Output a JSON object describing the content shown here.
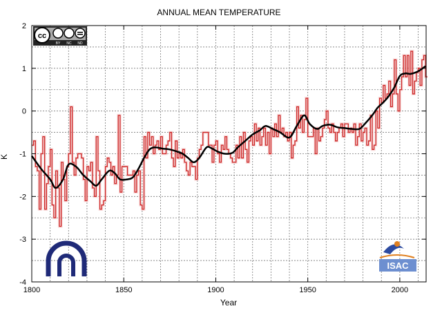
{
  "chart_data": {
    "type": "line",
    "title": "ANNUAL MEAN TEMPERATURE",
    "xlabel": "Year",
    "ylabel": "K",
    "xlim": [
      1800,
      2014
    ],
    "ylim": [
      -4,
      2
    ],
    "xticks": [
      1800,
      1850,
      1900,
      1950,
      2000
    ],
    "yticks": [
      2,
      1,
      0,
      -1,
      -2,
      -3,
      -4
    ],
    "grid": true,
    "grid_style": "dotted",
    "grid_step": {
      "x": 10,
      "y": 0.5
    },
    "colors": {
      "annual": "#cc1f1f",
      "smooth": "#000000",
      "annual_fill": "#f3c9c9"
    },
    "annual": {
      "start_year": 1800,
      "style": "step",
      "values": [
        -0.8,
        -0.7,
        -1.3,
        -1.4,
        -2.3,
        -1.0,
        -0.6,
        -2.3,
        -1.7,
        -1.3,
        -0.9,
        -2.2,
        -2.5,
        -1.4,
        -1.8,
        -2.7,
        -1.2,
        -1.6,
        -2.1,
        -1.3,
        -1.0,
        0.1,
        -1.2,
        -1.5,
        -1.1,
        -1.0,
        -1.0,
        -1.1,
        -1.6,
        -2.1,
        -1.3,
        -1.4,
        -1.2,
        -1.8,
        -2.0,
        -0.6,
        -1.4,
        -2.3,
        -2.2,
        -2.1,
        -1.3,
        -1.1,
        -1.2,
        -1.5,
        -1.3,
        -1.7,
        -1.5,
        -0.1,
        -1.9,
        -1.3,
        -1.3,
        -1.3,
        -1.5,
        -1.5,
        -1.5,
        -1.4,
        -1.9,
        -1.5,
        -1.4,
        -2.2,
        -2.3,
        -0.6,
        -1.1,
        -0.5,
        -0.8,
        -0.6,
        -1.0,
        -0.8,
        -0.7,
        -0.9,
        -0.6,
        -1.0,
        -1.0,
        -0.8,
        -0.7,
        -0.5,
        -1.1,
        -1.3,
        -0.7,
        -1.1,
        -1.0,
        -1.1,
        -0.9,
        -1.2,
        -1.4,
        -1.5,
        -1.2,
        -1.3,
        -1.3,
        -1.6,
        -1.1,
        -0.9,
        -0.8,
        -0.5,
        -0.5,
        -0.5,
        -0.8,
        -0.8,
        -1.2,
        -0.8,
        -0.7,
        -1.0,
        -1.2,
        -0.8,
        -0.9,
        -0.6,
        -0.9,
        -1.0,
        -1.1,
        -1.2,
        -1.2,
        -0.8,
        -1.1,
        -0.6,
        -1.1,
        -0.5,
        -0.9,
        -1.2,
        -0.7,
        -0.6,
        -0.8,
        -0.3,
        -0.7,
        -0.4,
        -0.8,
        -0.6,
        -0.4,
        -0.8,
        -0.5,
        -1.0,
        -0.4,
        -0.6,
        -0.3,
        -0.6,
        -0.1,
        -0.5,
        -0.4,
        -0.6,
        -0.5,
        -0.7,
        -0.5,
        -1.1,
        -0.8,
        -0.7,
        0.1,
        -0.4,
        -0.1,
        -0.5,
        -0.2,
        0.3,
        -0.6,
        -0.6,
        -0.6,
        -0.4,
        -1.0,
        -0.4,
        -0.7,
        -0.6,
        -0.4,
        -0.2,
        0.0,
        -0.4,
        -0.5,
        -0.3,
        -0.5,
        -0.7,
        -0.5,
        -0.4,
        -0.3,
        -0.6,
        -0.3,
        -0.3,
        -0.5,
        -0.4,
        -0.5,
        -0.3,
        -0.8,
        -0.6,
        -0.3,
        -0.7,
        -0.5,
        -0.4,
        -0.8,
        -0.7,
        -0.1,
        -0.9,
        -0.8,
        0.0,
        -0.4,
        0.3,
        0.2,
        0.6,
        0.3,
        0.4,
        0.7,
        0.1,
        0.4,
        1.2,
        0.4,
        0.0,
        0.5,
        0.8,
        1.3,
        0.8,
        1.3,
        0.6,
        1.4,
        0.4,
        0.7,
        0.9,
        1.0,
        0.6,
        1.2,
        1.3,
        0.8
      ]
    },
    "smooth": {
      "x": [
        1800,
        1805,
        1810,
        1813,
        1817,
        1820,
        1824,
        1828,
        1832,
        1835,
        1838,
        1842,
        1845,
        1848,
        1852,
        1855,
        1858,
        1861,
        1864,
        1867,
        1871,
        1875,
        1879,
        1882,
        1885,
        1888,
        1891,
        1895,
        1898,
        1901,
        1905,
        1909,
        1912,
        1916,
        1920,
        1924,
        1927,
        1931,
        1935,
        1940,
        1944,
        1948,
        1951,
        1955,
        1958,
        1962,
        1966,
        1970,
        1974,
        1978,
        1981,
        1985,
        1988,
        1991,
        1994,
        1997,
        2000,
        2003,
        2006,
        2010,
        2014
      ],
      "y": [
        -1.05,
        -1.35,
        -1.6,
        -1.8,
        -1.6,
        -1.25,
        -1.3,
        -1.5,
        -1.65,
        -1.75,
        -1.6,
        -1.4,
        -1.45,
        -1.6,
        -1.6,
        -1.55,
        -1.35,
        -1.1,
        -0.9,
        -0.85,
        -0.88,
        -0.9,
        -0.95,
        -1.0,
        -1.1,
        -1.2,
        -1.1,
        -0.85,
        -0.88,
        -0.95,
        -1.0,
        -0.98,
        -0.85,
        -0.7,
        -0.55,
        -0.45,
        -0.35,
        -0.42,
        -0.5,
        -0.62,
        -0.35,
        -0.1,
        -0.3,
        -0.42,
        -0.35,
        -0.32,
        -0.38,
        -0.4,
        -0.42,
        -0.42,
        -0.3,
        -0.1,
        0.08,
        0.2,
        0.35,
        0.55,
        0.82,
        0.88,
        0.87,
        0.93,
        1.05
      ]
    }
  },
  "logos": {
    "cc_badge": {
      "letters": "cc",
      "labels": [
        "BY",
        "NC",
        "ND"
      ]
    },
    "cnr_logo": {},
    "isac_logo": {
      "text": "ISAC"
    }
  }
}
